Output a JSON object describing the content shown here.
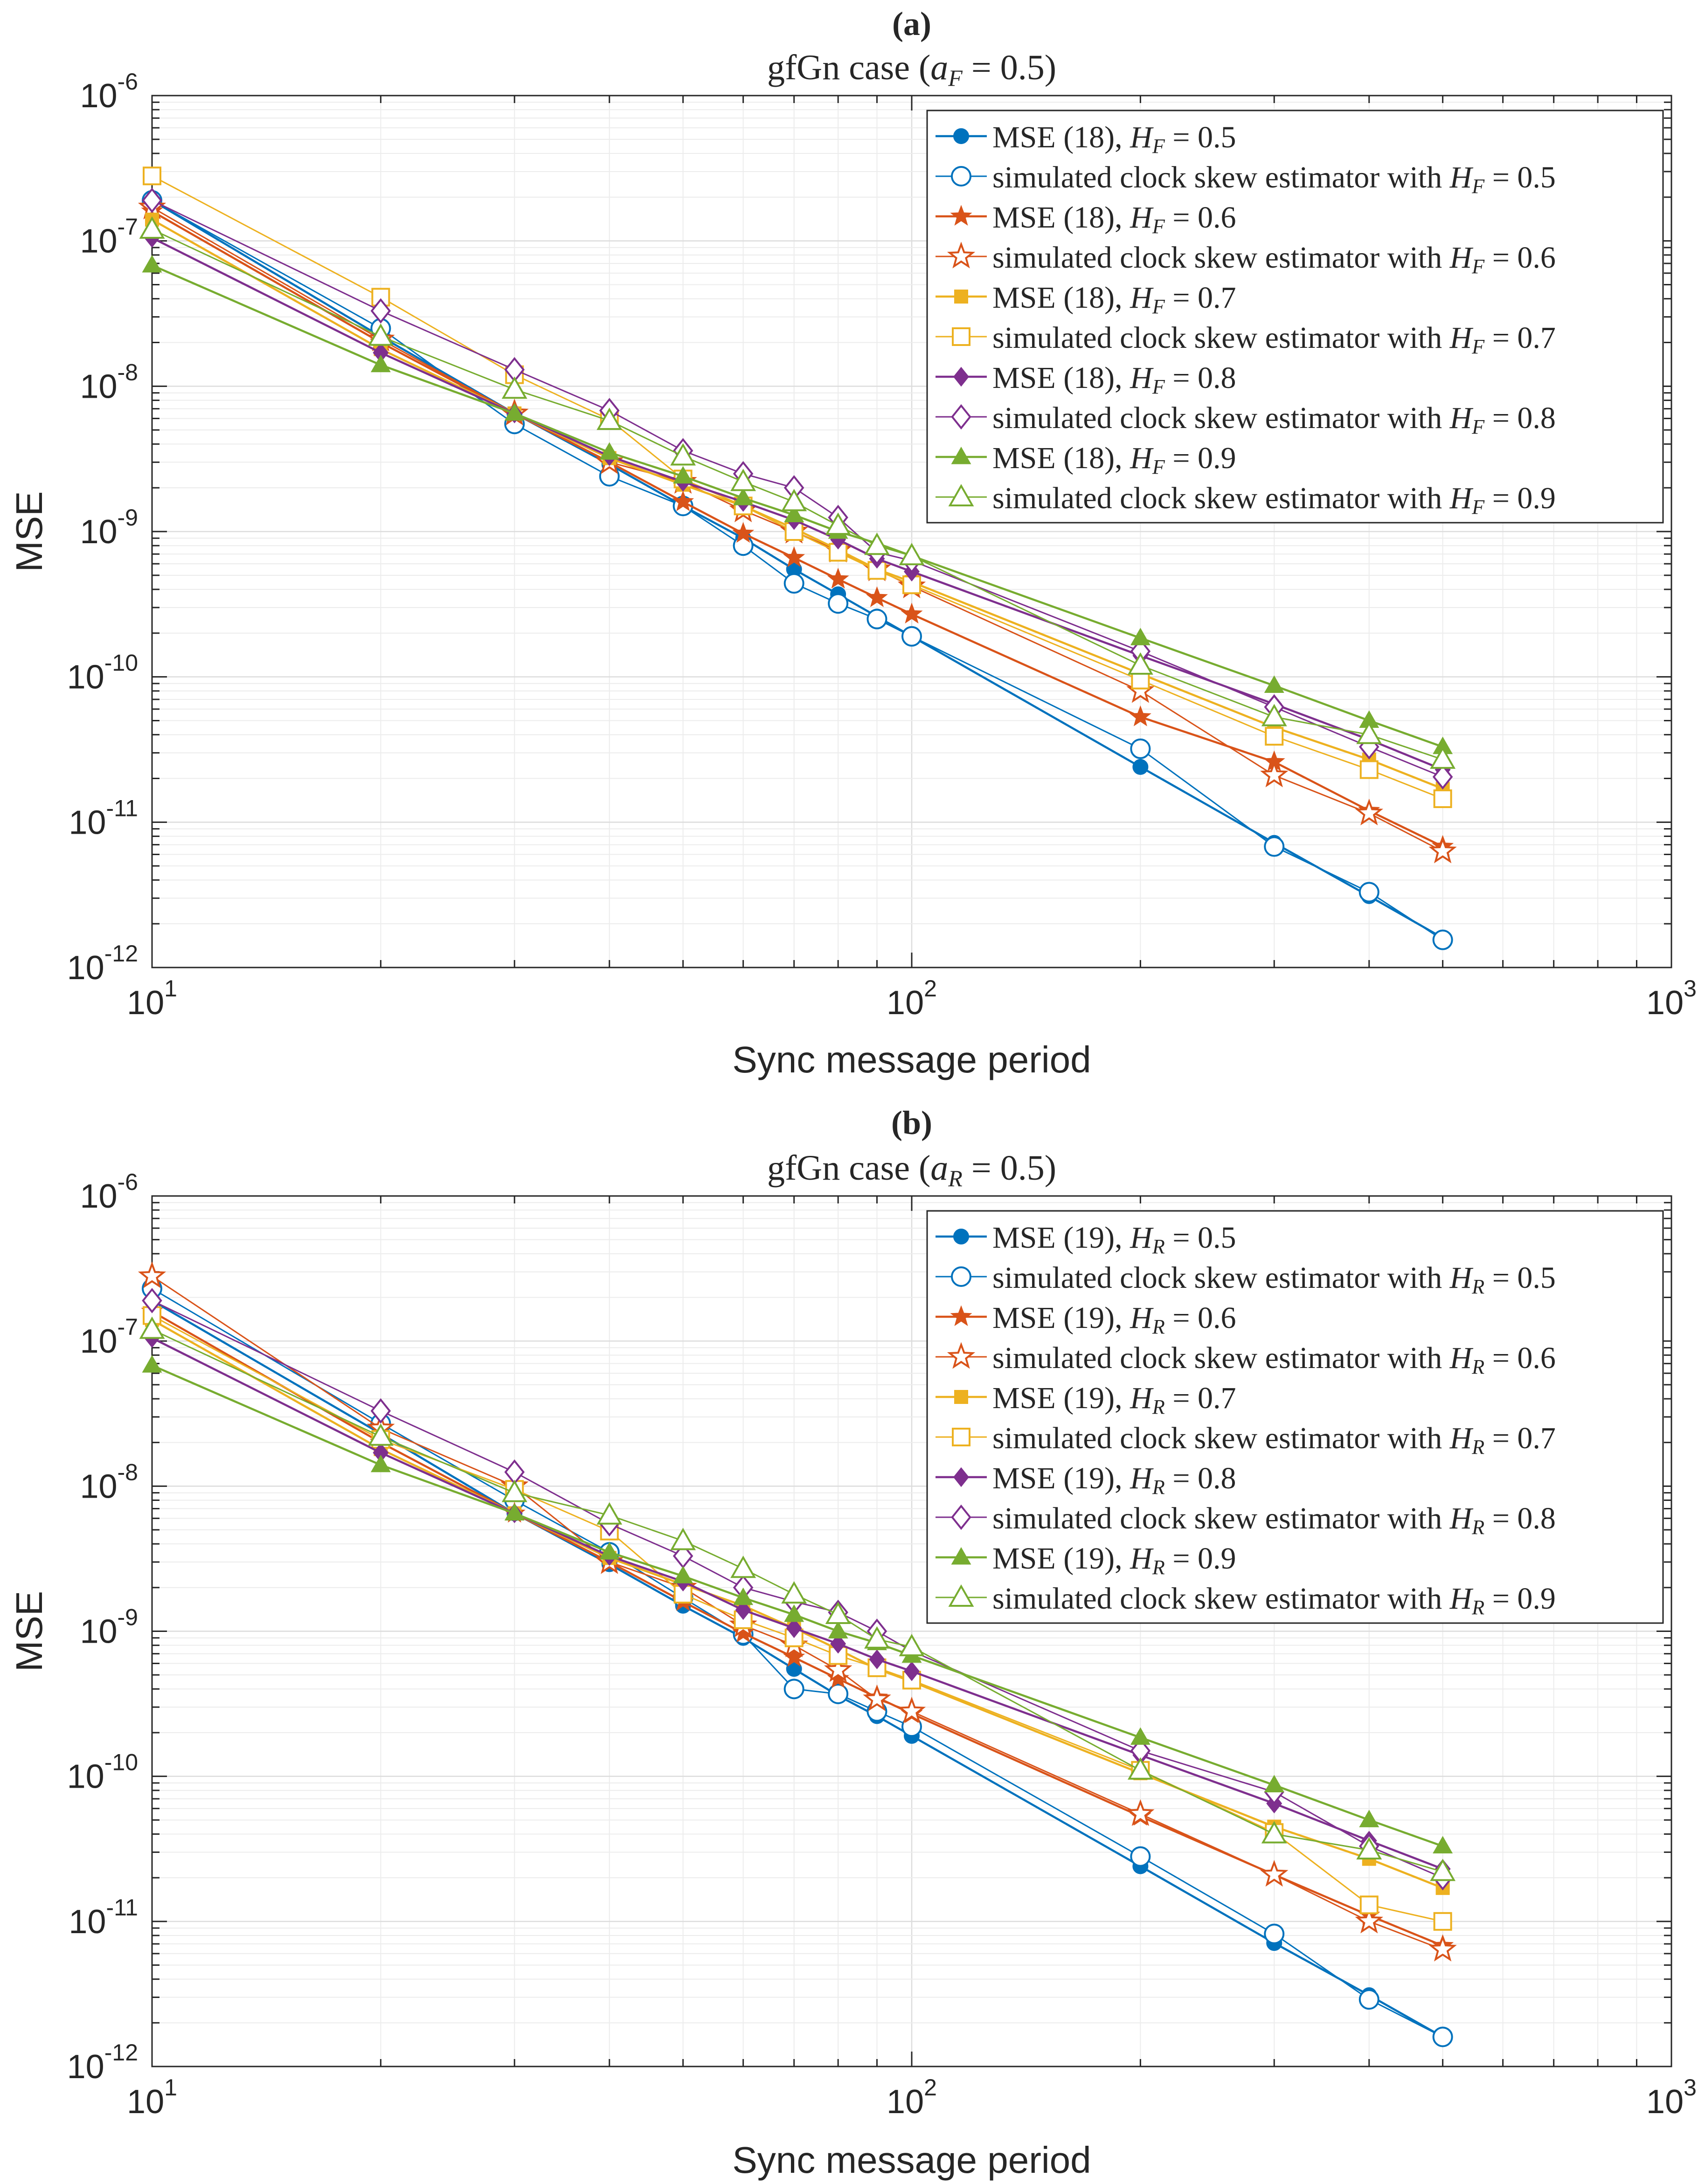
{
  "chart_data": [
    {
      "type": "line",
      "panel_label": "(a)",
      "title": "gfGn case (",
      "title_sym": "a",
      "title_sub": "F",
      "title_tail": " = 0.5)",
      "xlabel": "Sync message period",
      "ylabel": "MSE",
      "xscale": "log",
      "yscale": "log",
      "xlim": [
        10,
        1000
      ],
      "ylim": [
        1e-12,
        1e-06
      ],
      "x_ticks": [
        {
          "base": "10",
          "exp": "1"
        },
        {
          "base": "10",
          "exp": "2"
        },
        {
          "base": "10",
          "exp": "3"
        }
      ],
      "y_ticks": [
        {
          "base": "10",
          "exp": "-12"
        },
        {
          "base": "10",
          "exp": "-11"
        },
        {
          "base": "10",
          "exp": "-10"
        },
        {
          "base": "10",
          "exp": "-9"
        },
        {
          "base": "10",
          "exp": "-8"
        },
        {
          "base": "10",
          "exp": "-7"
        },
        {
          "base": "10",
          "exp": "-6"
        }
      ],
      "grid": true,
      "legend_position": "top-right",
      "x": [
        10,
        20,
        30,
        40,
        50,
        60,
        70,
        80,
        90,
        100,
        200,
        300,
        400,
        500
      ],
      "series": [
        {
          "label_pre": "MSE (18), ",
          "sym": "H",
          "sub": "F",
          "label_post": " = 0.5",
          "color": "#0072BD",
          "marker": "circle",
          "filled": true,
          "values": [
            1.9e-07,
            2.2e-08,
            6.5e-09,
            2.9e-09,
            1.5e-09,
            9e-10,
            5.5e-10,
            3.7e-10,
            2.6e-10,
            1.9e-10,
            2.4e-11,
            7.2e-12,
            3.1e-12,
            1.6e-12
          ]
        },
        {
          "label_pre": "simulated clock skew estimator with ",
          "sym": "H",
          "sub": "F",
          "label_post": " = 0.5",
          "color": "#0072BD",
          "marker": "circle",
          "filled": false,
          "values": [
            1.9e-07,
            2.5e-08,
            5.5e-09,
            2.4e-09,
            1.5e-09,
            8e-10,
            4.4e-10,
            3.2e-10,
            2.5e-10,
            1.9e-10,
            3.2e-11,
            6.8e-12,
            3.3e-12,
            1.55e-12
          ]
        },
        {
          "label_pre": "MSE (18), ",
          "sym": "H",
          "sub": "F",
          "label_post": " = 0.6",
          "color": "#D95319",
          "marker": "star",
          "filled": true,
          "values": [
            1.6e-07,
            2e-08,
            6.5e-09,
            3e-09,
            1.6e-09,
            9.7e-10,
            6.6e-10,
            4.7e-10,
            3.5e-10,
            2.7e-10,
            5.3e-11,
            2.6e-11,
            1.2e-11,
            6.8e-12
          ]
        },
        {
          "label_pre": "simulated clock skew estimator with ",
          "sym": "H",
          "sub": "F",
          "label_post": " = 0.6",
          "color": "#D95319",
          "marker": "star",
          "filled": false,
          "values": [
            1.7e-07,
            2.1e-08,
            6.5e-09,
            3e-09,
            2.2e-09,
            1.4e-09,
            1e-09,
            7.4e-10,
            5.5e-10,
            4.2e-10,
            8e-11,
            2.1e-11,
            1.15e-11,
            6.3e-12
          ]
        },
        {
          "label_pre": "MSE (18), ",
          "sym": "H",
          "sub": "F",
          "label_post": " = 0.7",
          "color": "#EDB120",
          "marker": "square",
          "filled": true,
          "values": [
            1.4e-07,
            1.8e-08,
            6.5e-09,
            3.2e-09,
            2.1e-09,
            1.5e-09,
            1.05e-09,
            7.5e-10,
            5.5e-10,
            4.5e-10,
            1.05e-10,
            4.5e-11,
            2.7e-11,
            1.7e-11
          ]
        },
        {
          "label_pre": "simulated clock skew estimator with ",
          "sym": "H",
          "sub": "F",
          "label_post": " = 0.7",
          "color": "#EDB120",
          "marker": "square",
          "filled": false,
          "values": [
            2.8e-07,
            4.1e-08,
            1.2e-08,
            5.9e-09,
            2.3e-09,
            1.5e-09,
            1e-09,
            7.2e-10,
            5.4e-10,
            4.3e-10,
            9.5e-11,
            3.9e-11,
            2.3e-11,
            1.45e-11
          ]
        },
        {
          "label_pre": "MSE (18), ",
          "sym": "H",
          "sub": "F",
          "label_post": " = 0.8",
          "color": "#7E2F8E",
          "marker": "diamond",
          "filled": true,
          "values": [
            1.05e-07,
            1.7e-08,
            6.5e-09,
            3.3e-09,
            2.2e-09,
            1.6e-09,
            1.2e-09,
            8.8e-10,
            6.5e-10,
            5.3e-10,
            1.4e-10,
            6.5e-11,
            3.7e-11,
            2.3e-11
          ]
        },
        {
          "label_pre": "simulated clock skew estimator with ",
          "sym": "H",
          "sub": "F",
          "label_post": " = 0.8",
          "color": "#7E2F8E",
          "marker": "diamond",
          "filled": false,
          "values": [
            1.9e-07,
            3.3e-08,
            1.3e-08,
            6.8e-09,
            3.6e-09,
            2.5e-09,
            2e-09,
            1.25e-09,
            7.2e-10,
            6.3e-10,
            1.5e-10,
            6.2e-11,
            3.3e-11,
            2.05e-11
          ]
        },
        {
          "label_pre": "MSE (18), ",
          "sym": "H",
          "sub": "F",
          "label_post": " = 0.9",
          "color": "#77AC30",
          "marker": "triangle",
          "filled": true,
          "values": [
            6.8e-08,
            1.4e-08,
            6.5e-09,
            3.5e-09,
            2.4e-09,
            1.7e-09,
            1.3e-09,
            1e-09,
            8.3e-10,
            6.8e-10,
            1.85e-10,
            8.7e-11,
            5e-11,
            3.3e-11
          ]
        },
        {
          "label_pre": "simulated clock skew estimator with ",
          "sym": "H",
          "sub": "F",
          "label_post": " = 0.9",
          "color": "#77AC30",
          "marker": "triangle",
          "filled": false,
          "values": [
            1.2e-07,
            2.2e-08,
            9.5e-09,
            5.8e-09,
            3.3e-09,
            2.2e-09,
            1.6e-09,
            1.1e-09,
            8e-10,
            6.8e-10,
            1.2e-10,
            5.3e-11,
            4e-11,
            2.7e-11
          ]
        }
      ]
    },
    {
      "type": "line",
      "panel_label": "(b)",
      "title": "gfGn case (",
      "title_sym": "a",
      "title_sub": "R",
      "title_tail": " = 0.5)",
      "xlabel": "Sync message period",
      "ylabel": "MSE",
      "xscale": "log",
      "yscale": "log",
      "xlim": [
        10,
        1000
      ],
      "ylim": [
        1e-12,
        1e-06
      ],
      "x_ticks": [
        {
          "base": "10",
          "exp": "1"
        },
        {
          "base": "10",
          "exp": "2"
        },
        {
          "base": "10",
          "exp": "3"
        }
      ],
      "y_ticks": [
        {
          "base": "10",
          "exp": "-12"
        },
        {
          "base": "10",
          "exp": "-11"
        },
        {
          "base": "10",
          "exp": "-10"
        },
        {
          "base": "10",
          "exp": "-9"
        },
        {
          "base": "10",
          "exp": "-8"
        },
        {
          "base": "10",
          "exp": "-7"
        },
        {
          "base": "10",
          "exp": "-6"
        }
      ],
      "grid": true,
      "legend_position": "top-right",
      "x": [
        10,
        20,
        30,
        40,
        50,
        60,
        70,
        80,
        90,
        100,
        200,
        300,
        400,
        500
      ],
      "series": [
        {
          "label_pre": "MSE (19), ",
          "sym": "H",
          "sub": "R",
          "label_post": " = 0.5",
          "color": "#0072BD",
          "marker": "circle",
          "filled": true,
          "values": [
            1.9e-07,
            2.3e-08,
            6.5e-09,
            2.9e-09,
            1.5e-09,
            9e-10,
            5.5e-10,
            3.6e-10,
            2.6e-10,
            1.9e-10,
            2.4e-11,
            7.1e-12,
            3.1e-12,
            1.6e-12
          ]
        },
        {
          "label_pre": "simulated clock skew estimator with ",
          "sym": "H",
          "sub": "R",
          "label_post": " = 0.5",
          "color": "#0072BD",
          "marker": "circle",
          "filled": false,
          "values": [
            2.3e-07,
            2.7e-08,
            8e-09,
            3.5e-09,
            1.7e-09,
            9.5e-10,
            4e-10,
            3.7e-10,
            2.8e-10,
            2.2e-10,
            2.8e-11,
            8.2e-12,
            2.9e-12,
            1.6e-12
          ]
        },
        {
          "label_pre": "MSE (19), ",
          "sym": "H",
          "sub": "R",
          "label_post": " = 0.6",
          "color": "#D95319",
          "marker": "star",
          "filled": true,
          "values": [
            1.6e-07,
            2e-08,
            6.5e-09,
            3e-09,
            1.6e-09,
            9.7e-10,
            6.6e-10,
            4.7e-10,
            3.5e-10,
            2.7e-10,
            5.3e-11,
            2.1e-11,
            1.1e-11,
            6.8e-12
          ]
        },
        {
          "label_pre": "simulated clock skew estimator with ",
          "sym": "H",
          "sub": "R",
          "label_post": " = 0.6",
          "color": "#D95319",
          "marker": "star",
          "filled": false,
          "values": [
            2.8e-07,
            2.5e-08,
            1e-08,
            3e-09,
            2e-09,
            1.1e-09,
            8e-10,
            5.4e-10,
            3.4e-10,
            2.8e-10,
            5.5e-11,
            2.1e-11,
            1e-11,
            6.4e-12
          ]
        },
        {
          "label_pre": "MSE (19), ",
          "sym": "H",
          "sub": "R",
          "label_post": " = 0.7",
          "color": "#EDB120",
          "marker": "square",
          "filled": true,
          "values": [
            1.4e-07,
            1.8e-08,
            6.5e-09,
            3.2e-09,
            2.1e-09,
            1.5e-09,
            1.05e-09,
            7.5e-10,
            5.5e-10,
            4.5e-10,
            1.05e-10,
            4.5e-11,
            2.7e-11,
            1.7e-11
          ]
        },
        {
          "label_pre": "simulated clock skew estimator with ",
          "sym": "H",
          "sub": "R",
          "label_post": " = 0.7",
          "color": "#EDB120",
          "marker": "square",
          "filled": false,
          "values": [
            1.5e-07,
            2.1e-08,
            9.5e-09,
            4.9e-09,
            1.8e-09,
            1.2e-09,
            9e-10,
            6.8e-10,
            5.6e-10,
            4.6e-10,
            1.1e-10,
            4.1e-11,
            1.3e-11,
            1e-11
          ]
        },
        {
          "label_pre": "MSE (19), ",
          "sym": "H",
          "sub": "R",
          "label_post": " = 0.8",
          "color": "#7E2F8E",
          "marker": "diamond",
          "filled": true,
          "values": [
            1.05e-07,
            1.7e-08,
            6.5e-09,
            3.3e-09,
            2.2e-09,
            1.4e-09,
            1.05e-09,
            8.2e-10,
            6.4e-10,
            5.3e-10,
            1.4e-10,
            6.5e-11,
            3.6e-11,
            2.3e-11
          ]
        },
        {
          "label_pre": "simulated clock skew estimator with ",
          "sym": "H",
          "sub": "R",
          "label_post": " = 0.8",
          "color": "#7E2F8E",
          "marker": "diamond",
          "filled": false,
          "values": [
            1.9e-07,
            3.3e-08,
            1.25e-08,
            5.5e-09,
            3.3e-09,
            2e-09,
            1.6e-09,
            1.35e-09,
            1e-09,
            7.3e-10,
            1.5e-10,
            7.8e-11,
            3.3e-11,
            2e-11
          ]
        },
        {
          "label_pre": "MSE (19), ",
          "sym": "H",
          "sub": "R",
          "label_post": " = 0.9",
          "color": "#77AC30",
          "marker": "triangle",
          "filled": true,
          "values": [
            6.8e-08,
            1.4e-08,
            6.5e-09,
            3.5e-09,
            2.4e-09,
            1.7e-09,
            1.3e-09,
            1e-09,
            8.3e-10,
            6.8e-10,
            1.85e-10,
            8.7e-11,
            5e-11,
            3.3e-11
          ]
        },
        {
          "label_pre": "simulated clock skew estimator with ",
          "sym": "H",
          "sub": "R",
          "label_post": " = 0.9",
          "color": "#77AC30",
          "marker": "triangle",
          "filled": false,
          "values": [
            1.2e-07,
            2.2e-08,
            9e-09,
            6.3e-09,
            4.2e-09,
            2.7e-09,
            1.8e-09,
            1.3e-09,
            8.8e-10,
            7.8e-10,
            1.1e-10,
            4e-11,
            3.1e-11,
            2.2e-11
          ]
        }
      ]
    }
  ]
}
